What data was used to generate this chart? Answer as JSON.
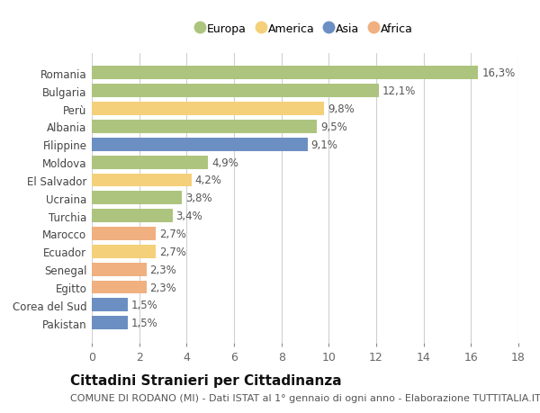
{
  "categories": [
    "Romania",
    "Bulgaria",
    "Perù",
    "Albania",
    "Filippine",
    "Moldova",
    "El Salvador",
    "Ucraina",
    "Turchia",
    "Marocco",
    "Ecuador",
    "Senegal",
    "Egitto",
    "Corea del Sud",
    "Pakistan"
  ],
  "values": [
    16.3,
    12.1,
    9.8,
    9.5,
    9.1,
    4.9,
    4.2,
    3.8,
    3.4,
    2.7,
    2.7,
    2.3,
    2.3,
    1.5,
    1.5
  ],
  "labels": [
    "16,3%",
    "12,1%",
    "9,8%",
    "9,5%",
    "9,1%",
    "4,9%",
    "4,2%",
    "3,8%",
    "3,4%",
    "2,7%",
    "2,7%",
    "2,3%",
    "2,3%",
    "1,5%",
    "1,5%"
  ],
  "continents": [
    "Europa",
    "Europa",
    "America",
    "Europa",
    "Asia",
    "Europa",
    "America",
    "Europa",
    "Europa",
    "Africa",
    "America",
    "Africa",
    "Africa",
    "Asia",
    "Asia"
  ],
  "colors": {
    "Europa": "#adc47e",
    "America": "#f5d07a",
    "Asia": "#6b8fc2",
    "Africa": "#f0b080"
  },
  "legend_order": [
    "Europa",
    "America",
    "Asia",
    "Africa"
  ],
  "xlim": [
    0,
    18
  ],
  "xticks": [
    0,
    2,
    4,
    6,
    8,
    10,
    12,
    14,
    16,
    18
  ],
  "title": "Cittadini Stranieri per Cittadinanza",
  "subtitle": "COMUNE DI RODANO (MI) - Dati ISTAT al 1° gennaio di ogni anno - Elaborazione TUTTITALIA.IT",
  "bg_color": "#ffffff",
  "grid_color": "#d0d0d0",
  "label_fontsize": 8.5,
  "ytick_fontsize": 8.5,
  "xtick_fontsize": 9,
  "title_fontsize": 11,
  "subtitle_fontsize": 8
}
